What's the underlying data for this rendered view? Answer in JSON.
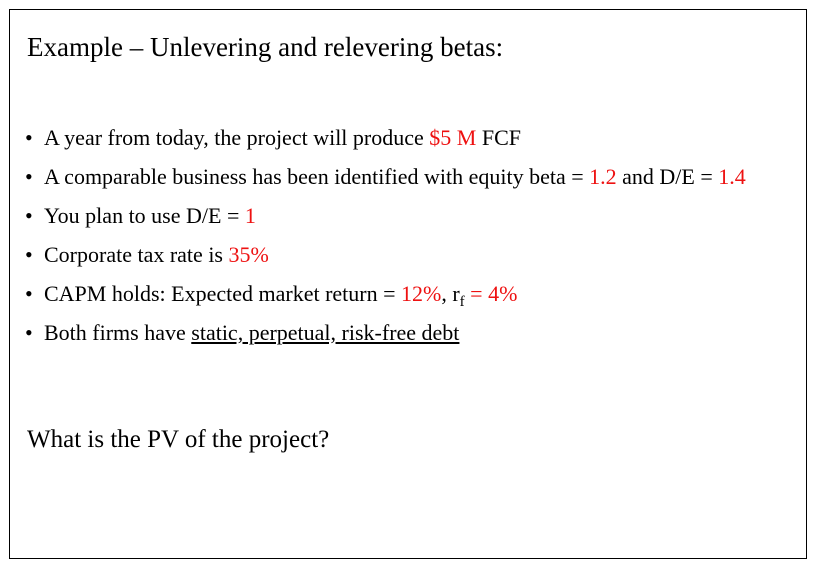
{
  "title": "Example – Unlevering and relevering betas:",
  "bullet_char": "•",
  "bullets": [
    {
      "pre": "A year from today, the project will produce ",
      "red": "$5 M",
      "post": " FCF"
    },
    {
      "pre": "A comparable business has been identified with equity beta = ",
      "red": "1.2",
      "mid": " and D/E = ",
      "red2": "1.4"
    },
    {
      "pre": "You plan to use D/E = ",
      "red": "1"
    },
    {
      "pre": "Corporate tax rate is ",
      "red": "35%"
    },
    {
      "pre": "CAPM holds: Expected market return = ",
      "red": "12%",
      "mid": ", r",
      "sub": "f",
      "eq": " = ",
      "red2": "4%"
    },
    {
      "pre": "Both firms have ",
      "underlined": "static, perpetual, risk-free debt"
    }
  ],
  "question": "What is the PV of the project?",
  "colors": {
    "highlight": "#ee1111",
    "text": "#000000",
    "border": "#000000"
  }
}
